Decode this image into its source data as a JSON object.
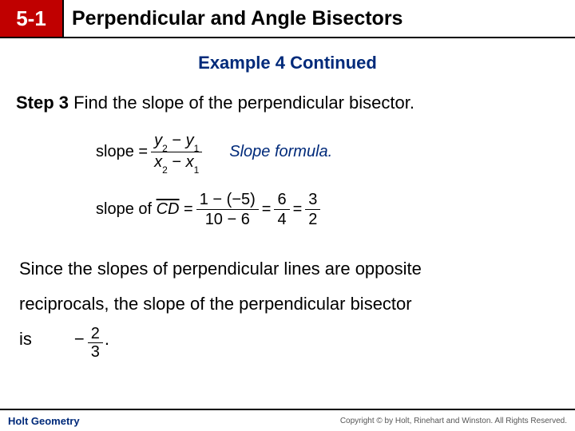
{
  "header": {
    "section_number": "5-1",
    "title": "Perpendicular and Angle Bisectors"
  },
  "subtitle": "Example 4 Continued",
  "step": {
    "label": "Step 3",
    "text": "Find the slope of the perpendicular bisector."
  },
  "formula1": {
    "lhs": "slope =",
    "num_a": "y",
    "num_a_sub": "2",
    "num_op": "−",
    "num_b": "y",
    "num_b_sub": "1",
    "den_a": "x",
    "den_a_sub": "2",
    "den_op": "−",
    "den_b": "x",
    "den_b_sub": "1",
    "note": "Slope formula."
  },
  "formula2": {
    "lhs_pre": "slope of ",
    "seg": "CD",
    "lhs_post": " =",
    "f1_num": "1 − (−5)",
    "f1_den": "10 − 6",
    "eq1": "=",
    "f2_num": "6",
    "f2_den": "4",
    "eq2": "=",
    "f3_num": "3",
    "f3_den": "2"
  },
  "conclusion": {
    "line1": "Since the slopes of perpendicular lines are opposite",
    "line2a": "reciprocals, the slope of the perpendicular bisector",
    "line3a": "is",
    "ans_neg": "−",
    "ans_num": "2",
    "ans_den": "3",
    "period": "."
  },
  "footer": {
    "brand": "Holt Geometry",
    "copyright": "Copyright © by Holt, Rinehart and Winston. All Rights Reserved."
  },
  "colors": {
    "accent_red": "#c00000",
    "accent_blue": "#002a7a"
  }
}
